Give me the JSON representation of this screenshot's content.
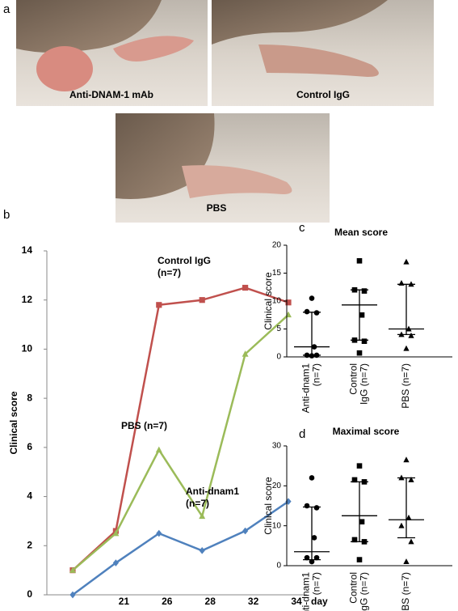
{
  "panels": [
    "a",
    "b",
    "c",
    "d"
  ],
  "photos": [
    {
      "label": "Anti-DNAM-1 mAb"
    },
    {
      "label": "Control IgG"
    },
    {
      "label": "PBS"
    }
  ],
  "chart_data": [
    {
      "type": "line",
      "ylabel": "Clinical score",
      "xlabel": "day",
      "categories": [
        null,
        "21",
        "26",
        "28",
        "32",
        "34"
      ],
      "ylim": [
        0,
        14
      ],
      "yticks": [
        0,
        2,
        4,
        6,
        8,
        10,
        12,
        14
      ],
      "series": [
        {
          "label": [
            "Control IgG",
            "(n=7)"
          ],
          "color": "#c0504d",
          "marker": "square",
          "values": [
            1,
            2.6,
            11.8,
            12,
            12.5,
            11.9
          ]
        },
        {
          "label": [
            "PBS (n=7)"
          ],
          "color": "#9bbb59",
          "marker": "triangle",
          "values": [
            1,
            2.5,
            5.9,
            3.2,
            9.8,
            11.4
          ]
        },
        {
          "label": [
            "Anti-dnam1",
            "(n=7)"
          ],
          "color": "#4f81bd",
          "marker": "diamond",
          "values": [
            0,
            1.3,
            2.5,
            1.8,
            2.6,
            3.8
          ]
        }
      ]
    },
    {
      "type": "dotplot",
      "title": "Mean score",
      "ylabel": "Clinical score",
      "ylim": [
        0,
        20
      ],
      "yticks": [
        0,
        5,
        10,
        15,
        20
      ],
      "groups": [
        {
          "label": [
            "Anti-dnam1",
            "(n=7)"
          ],
          "marker": "circle",
          "values": [
            10.5,
            8.1,
            7.9,
            1.8,
            0.3,
            0.3,
            0.2
          ],
          "center": 1.8,
          "low": 0.3,
          "high": 8
        },
        {
          "label": [
            "Control",
            "IgG (n=7)"
          ],
          "marker": "square",
          "values": [
            17.2,
            12,
            11.8,
            7.5,
            3,
            2.8,
            0.7
          ],
          "center": 9.3,
          "low": 3,
          "high": 12
        },
        {
          "label": [
            "PBS (n=7)"
          ],
          "marker": "triangle",
          "values": [
            17,
            13.2,
            13,
            5,
            4,
            3.8,
            1.5
          ],
          "center": 5,
          "low": 4,
          "high": 13
        }
      ]
    },
    {
      "type": "dotplot",
      "title": "Maximal score",
      "ylabel": "Clinical score",
      "ylim": [
        0,
        30
      ],
      "yticks": [
        0,
        10,
        20,
        30
      ],
      "groups": [
        {
          "label": [
            "Anti-dnam1",
            "(n=7)"
          ],
          "marker": "circle",
          "values": [
            22,
            15,
            14.5,
            7,
            2,
            2,
            1
          ],
          "center": 3.5,
          "low": 1.5,
          "high": 14.7
        },
        {
          "label": [
            "Control",
            "IgG (n=7)"
          ],
          "marker": "square",
          "values": [
            25,
            21.5,
            21,
            11,
            6.5,
            6,
            1.5
          ],
          "center": 12.5,
          "low": 6,
          "high": 21
        },
        {
          "label": [
            "PBS (n=7)"
          ],
          "marker": "triangle",
          "values": [
            26.5,
            22,
            21.5,
            12,
            10,
            6,
            1
          ],
          "center": 11.5,
          "low": 7,
          "high": 22
        }
      ]
    }
  ]
}
